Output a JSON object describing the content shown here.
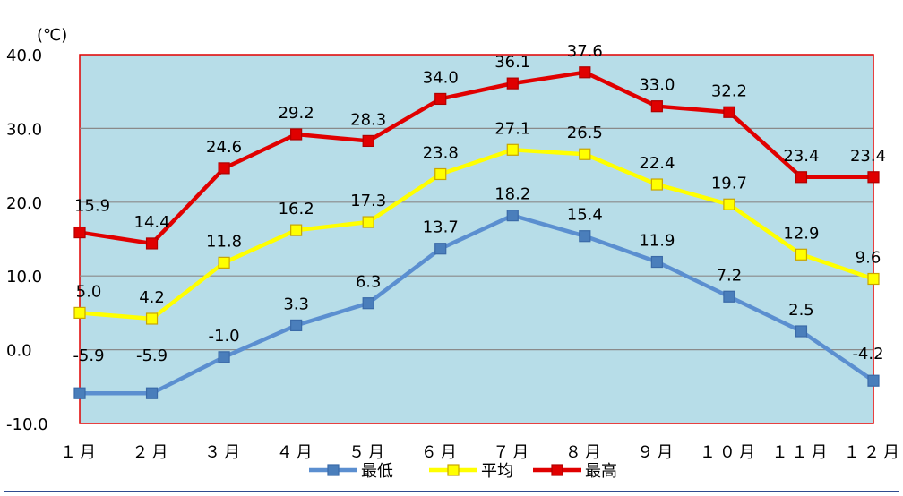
{
  "chart_data": {
    "type": "line",
    "unit_label": "(℃)",
    "categories": [
      "1月",
      "2月",
      "3月",
      "4月",
      "5月",
      "6月",
      "7月",
      "8月",
      "9月",
      "10月",
      "11月",
      "12月"
    ],
    "category_display": [
      "１月",
      "２月",
      "３月",
      "４月",
      "５月",
      "６月",
      "７月",
      "８月",
      "９月",
      "１０月",
      "１１月",
      "１２月"
    ],
    "y_ticks": [
      "40.0",
      "30.0",
      "20.0",
      "10.0",
      "0.0",
      "-10.0"
    ],
    "ylim": [
      -10,
      40
    ],
    "grid": true,
    "legend_position": "bottom",
    "plot_background": "#b7dde8",
    "series": [
      {
        "name": "最低",
        "color": "#5b8fd0",
        "marker_fill": "#4a7ebb",
        "values": [
          -5.9,
          -5.9,
          -1.0,
          3.3,
          6.3,
          13.7,
          18.2,
          15.4,
          11.9,
          7.2,
          2.5,
          -4.2
        ],
        "labels": [
          "-5.9",
          "-5.9",
          "-1.0",
          "3.3",
          "6.3",
          "13.7",
          "18.2",
          "15.4",
          "11.9",
          "7.2",
          "2.5",
          "-4.2"
        ]
      },
      {
        "name": "平均",
        "color": "#ffff00",
        "marker_fill": "#ffff00",
        "values": [
          5.0,
          4.2,
          11.8,
          16.2,
          17.3,
          23.8,
          27.1,
          26.5,
          22.4,
          19.7,
          12.9,
          9.6
        ],
        "labels": [
          "5.0",
          "4.2",
          "11.8",
          "16.2",
          "17.3",
          "23.8",
          "27.1",
          "26.5",
          "22.4",
          "19.7",
          "12.9",
          "9.6"
        ]
      },
      {
        "name": "最高",
        "color": "#e00000",
        "marker_fill": "#e00000",
        "values": [
          15.9,
          14.4,
          24.6,
          29.2,
          28.3,
          34.0,
          36.1,
          37.6,
          33.0,
          32.2,
          23.4,
          23.4
        ],
        "labels": [
          "15.9",
          "14.4",
          "24.6",
          "29.2",
          "28.3",
          "34.0",
          "36.1",
          "37.6",
          "33.0",
          "32.2",
          "23.4",
          "23.4"
        ]
      }
    ]
  }
}
